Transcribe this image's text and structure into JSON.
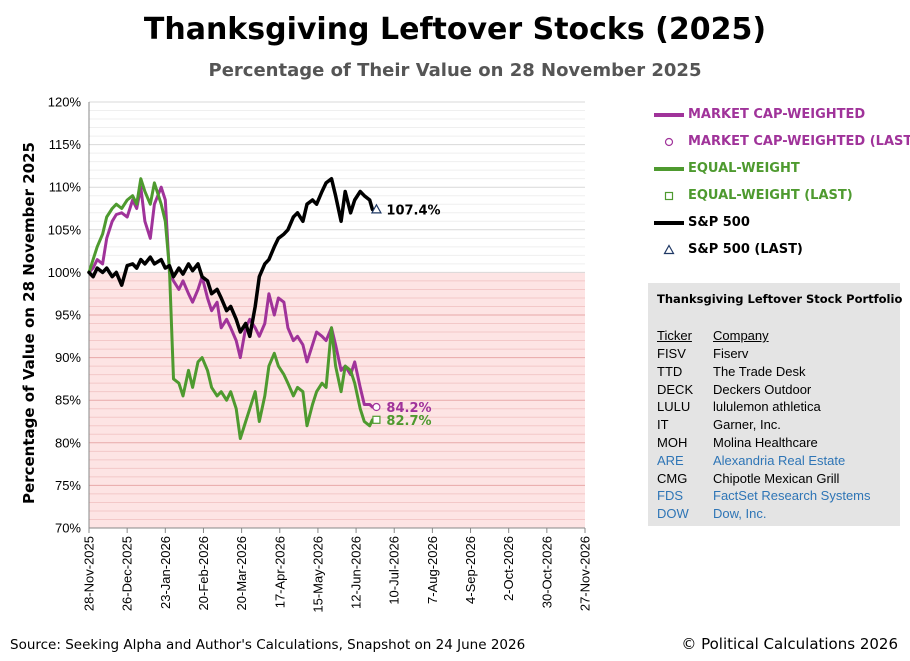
{
  "header": {
    "title": "Thanksgiving Leftover Stocks (2025)",
    "subtitle": "Percentage of Their Value on 28 November 2025"
  },
  "chart_data": {
    "type": "line",
    "title": "Thanksgiving Leftover Stocks (2025)",
    "subtitle": "Percentage of Their Value on 28 November 2025",
    "ylabel": "Percentage of Value on 28 November 2025",
    "xlabel": "",
    "ylim": [
      70,
      120
    ],
    "xlim": [
      "2025-11-28",
      "2026-11-27"
    ],
    "y_ticks": [
      70,
      75,
      80,
      85,
      90,
      95,
      100,
      105,
      110,
      115,
      120
    ],
    "y_tick_labels": [
      "70%",
      "75%",
      "80%",
      "85%",
      "90%",
      "95%",
      "100%",
      "105%",
      "110%",
      "115%",
      "120%"
    ],
    "x_ticks": [
      "2025-11-28",
      "2025-12-26",
      "2026-01-23",
      "2026-02-20",
      "2026-03-20",
      "2026-04-17",
      "2026-05-15",
      "2026-06-12",
      "2026-07-10",
      "2026-08-07",
      "2026-09-04",
      "2026-10-02",
      "2026-10-30",
      "2026-11-27"
    ],
    "x_tick_labels": [
      "28-Nov-2025",
      "26-Dec-2025",
      "23-Jan-2026",
      "20-Feb-2026",
      "20-Mar-2026",
      "17-Apr-2026",
      "15-May-2026",
      "12-Jun-2026",
      "10-Jul-2026",
      "7-Aug-2026",
      "4-Sep-2026",
      "2-Oct-2026",
      "30-Oct-2026",
      "27-Nov-2026"
    ],
    "shaded_band": {
      "from": 70,
      "to": 100,
      "color": "#fde4e4"
    },
    "grid": true,
    "legend_position": "right",
    "series": [
      {
        "name": "MARKET CAP-WEIGHTED",
        "color": "#a0339a",
        "x": [
          "2025-11-28",
          "2025-12-01",
          "2025-12-04",
          "2025-12-08",
          "2025-12-11",
          "2025-12-15",
          "2025-12-18",
          "2025-12-22",
          "2025-12-26",
          "2025-12-30",
          "2026-01-02",
          "2026-01-05",
          "2026-01-08",
          "2026-01-12",
          "2026-01-15",
          "2026-01-20",
          "2026-01-23",
          "2026-01-26",
          "2026-01-29",
          "2026-02-02",
          "2026-02-05",
          "2026-02-09",
          "2026-02-12",
          "2026-02-16",
          "2026-02-19",
          "2026-02-23",
          "2026-02-26",
          "2026-03-02",
          "2026-03-05",
          "2026-03-09",
          "2026-03-12",
          "2026-03-16",
          "2026-03-19",
          "2026-03-23",
          "2026-03-26",
          "2026-03-30",
          "2026-04-02",
          "2026-04-06",
          "2026-04-09",
          "2026-04-13",
          "2026-04-16",
          "2026-04-20",
          "2026-04-23",
          "2026-04-27",
          "2026-04-30",
          "2026-05-04",
          "2026-05-07",
          "2026-05-11",
          "2026-05-14",
          "2026-05-18",
          "2026-05-21",
          "2026-05-25",
          "2026-05-28",
          "2026-06-01",
          "2026-06-04",
          "2026-06-08",
          "2026-06-11",
          "2026-06-15",
          "2026-06-18",
          "2026-06-22",
          "2026-06-24"
        ],
        "values": [
          100.0,
          100.5,
          101.5,
          101.0,
          104.0,
          106.0,
          106.8,
          107.0,
          106.5,
          108.5,
          107.5,
          110.0,
          106.0,
          104.0,
          108.0,
          110.0,
          108.5,
          100.0,
          99.0,
          98.0,
          99.0,
          97.5,
          96.5,
          98.0,
          99.5,
          97.0,
          95.5,
          96.5,
          93.5,
          94.5,
          93.5,
          92.0,
          90.0,
          93.5,
          94.5,
          93.5,
          92.5,
          94.0,
          97.5,
          95.0,
          97.0,
          96.5,
          93.5,
          92.0,
          92.5,
          91.5,
          89.5,
          91.5,
          93.0,
          92.5,
          92.0,
          93.5,
          91.5,
          88.5,
          89.0,
          88.0,
          89.5,
          86.5,
          84.5,
          84.5,
          84.2
        ]
      },
      {
        "name": "EQUAL-WEIGHT",
        "color": "#4e9a2f",
        "x": [
          "2025-11-28",
          "2025-12-01",
          "2025-12-04",
          "2025-12-08",
          "2025-12-11",
          "2025-12-15",
          "2025-12-18",
          "2025-12-22",
          "2025-12-26",
          "2025-12-30",
          "2026-01-02",
          "2026-01-05",
          "2026-01-08",
          "2026-01-12",
          "2026-01-15",
          "2026-01-20",
          "2026-01-23",
          "2026-01-26",
          "2026-01-29",
          "2026-02-02",
          "2026-02-05",
          "2026-02-09",
          "2026-02-12",
          "2026-02-16",
          "2026-02-19",
          "2026-02-23",
          "2026-02-26",
          "2026-03-02",
          "2026-03-05",
          "2026-03-09",
          "2026-03-12",
          "2026-03-16",
          "2026-03-19",
          "2026-03-23",
          "2026-03-26",
          "2026-03-30",
          "2026-04-02",
          "2026-04-06",
          "2026-04-09",
          "2026-04-13",
          "2026-04-16",
          "2026-04-20",
          "2026-04-23",
          "2026-04-27",
          "2026-04-30",
          "2026-05-04",
          "2026-05-07",
          "2026-05-11",
          "2026-05-14",
          "2026-05-18",
          "2026-05-21",
          "2026-05-25",
          "2026-05-28",
          "2026-06-01",
          "2026-06-04",
          "2026-06-08",
          "2026-06-11",
          "2026-06-15",
          "2026-06-18",
          "2026-06-22",
          "2026-06-24"
        ],
        "values": [
          100.0,
          101.5,
          103.0,
          104.5,
          106.5,
          107.5,
          108.0,
          107.5,
          108.5,
          109.0,
          108.0,
          111.0,
          109.5,
          108.0,
          110.5,
          108.0,
          106.0,
          100.5,
          87.5,
          87.0,
          85.5,
          88.5,
          86.5,
          89.5,
          90.0,
          88.5,
          86.5,
          85.5,
          86.0,
          85.0,
          86.0,
          84.0,
          80.5,
          82.5,
          84.0,
          86.0,
          82.5,
          85.5,
          89.0,
          90.5,
          89.0,
          88.0,
          87.0,
          85.5,
          86.5,
          86.0,
          82.0,
          84.5,
          86.0,
          87.0,
          86.5,
          93.5,
          89.0,
          86.0,
          89.0,
          88.5,
          87.0,
          84.0,
          82.5,
          82.0,
          82.7
        ]
      },
      {
        "name": "S&P 500",
        "color": "#000000",
        "x": [
          "2025-11-28",
          "2025-12-01",
          "2025-12-04",
          "2025-12-08",
          "2025-12-11",
          "2025-12-15",
          "2025-12-18",
          "2025-12-22",
          "2025-12-26",
          "2025-12-30",
          "2026-01-02",
          "2026-01-05",
          "2026-01-08",
          "2026-01-12",
          "2026-01-15",
          "2026-01-20",
          "2026-01-23",
          "2026-01-26",
          "2026-01-29",
          "2026-02-02",
          "2026-02-05",
          "2026-02-09",
          "2026-02-12",
          "2026-02-16",
          "2026-02-19",
          "2026-02-23",
          "2026-02-26",
          "2026-03-02",
          "2026-03-05",
          "2026-03-09",
          "2026-03-12",
          "2026-03-16",
          "2026-03-19",
          "2026-03-23",
          "2026-03-26",
          "2026-03-30",
          "2026-04-02",
          "2026-04-06",
          "2026-04-09",
          "2026-04-13",
          "2026-04-16",
          "2026-04-20",
          "2026-04-23",
          "2026-04-27",
          "2026-04-30",
          "2026-05-04",
          "2026-05-07",
          "2026-05-11",
          "2026-05-14",
          "2026-05-18",
          "2026-05-21",
          "2026-05-25",
          "2026-05-28",
          "2026-06-01",
          "2026-06-04",
          "2026-06-08",
          "2026-06-11",
          "2026-06-15",
          "2026-06-18",
          "2026-06-22",
          "2026-06-24"
        ],
        "values": [
          100.0,
          99.5,
          100.5,
          100.0,
          100.5,
          99.5,
          100.0,
          98.5,
          100.8,
          101.0,
          100.5,
          101.5,
          101.0,
          101.8,
          101.0,
          101.5,
          100.5,
          100.8,
          99.5,
          100.5,
          99.8,
          101.0,
          100.2,
          101.0,
          99.5,
          99.0,
          97.5,
          98.0,
          97.0,
          95.5,
          96.0,
          94.5,
          93.0,
          94.0,
          92.5,
          96.0,
          99.5,
          101.0,
          101.5,
          103.0,
          104.0,
          104.5,
          105.0,
          106.5,
          107.0,
          106.0,
          108.0,
          108.5,
          108.0,
          109.5,
          110.5,
          111.0,
          109.0,
          106.0,
          109.5,
          107.0,
          108.5,
          109.5,
          109.0,
          108.5,
          107.4
        ]
      }
    ],
    "last_markers": [
      {
        "name": "MARKET CAP-WEIGHTED (LAST)",
        "x": "2026-06-24",
        "y": 84.2,
        "label": "84.2%",
        "color": "#a0339a",
        "marker": "circle"
      },
      {
        "name": "EQUAL-WEIGHT (LAST)",
        "x": "2026-06-24",
        "y": 82.7,
        "label": "82.7%",
        "color": "#4e9a2f",
        "marker": "square"
      },
      {
        "name": "S&P 500 (LAST)",
        "x": "2026-06-24",
        "y": 107.4,
        "label": "107.4%",
        "color": "#1f3864",
        "marker": "triangle"
      }
    ]
  },
  "legend": {
    "items": [
      {
        "label": "MARKET CAP-WEIGHTED",
        "color": "#a0339a",
        "kind": "line"
      },
      {
        "label": "MARKET CAP-WEIGHTED (LAST)",
        "color": "#a0339a",
        "kind": "circle"
      },
      {
        "label": "EQUAL-WEIGHT",
        "color": "#4e9a2f",
        "kind": "line"
      },
      {
        "label": "EQUAL-WEIGHT (LAST)",
        "color": "#4e9a2f",
        "kind": "square"
      },
      {
        "label": "S&P 500",
        "color": "#000000",
        "kind": "line"
      },
      {
        "label": "S&P 500 (LAST)",
        "color": "#000000",
        "kind": "triangle"
      }
    ]
  },
  "portfolio": {
    "title": "Thanksgiving Leftover Stock Portfolio",
    "ticker_header": "Ticker",
    "company_header": "Company",
    "rows": [
      {
        "ticker": "FISV",
        "company": "Fiserv",
        "color": "#000000"
      },
      {
        "ticker": "TTD",
        "company": "The Trade Desk",
        "color": "#000000"
      },
      {
        "ticker": "DECK",
        "company": "Deckers Outdoor",
        "color": "#000000"
      },
      {
        "ticker": "LULU",
        "company": "lululemon athletica",
        "color": "#000000"
      },
      {
        "ticker": "IT",
        "company": "Garner, Inc.",
        "color": "#000000"
      },
      {
        "ticker": "MOH",
        "company": "Molina Healthcare",
        "color": "#000000"
      },
      {
        "ticker": "ARE",
        "company": "Alexandria Real Estate",
        "color": "#2e75b6"
      },
      {
        "ticker": "CMG",
        "company": "Chipotle Mexican Grill",
        "color": "#000000"
      },
      {
        "ticker": "FDS",
        "company": "FactSet Research Systems",
        "color": "#2e75b6"
      },
      {
        "ticker": "DOW",
        "company": "Dow, Inc.",
        "color": "#2e75b6"
      }
    ]
  },
  "footer": {
    "source": "Source: Seeking Alpha and Author's Calculations, Snapshot on 24 June 2026",
    "copyright": "© Political Calculations 2026"
  }
}
